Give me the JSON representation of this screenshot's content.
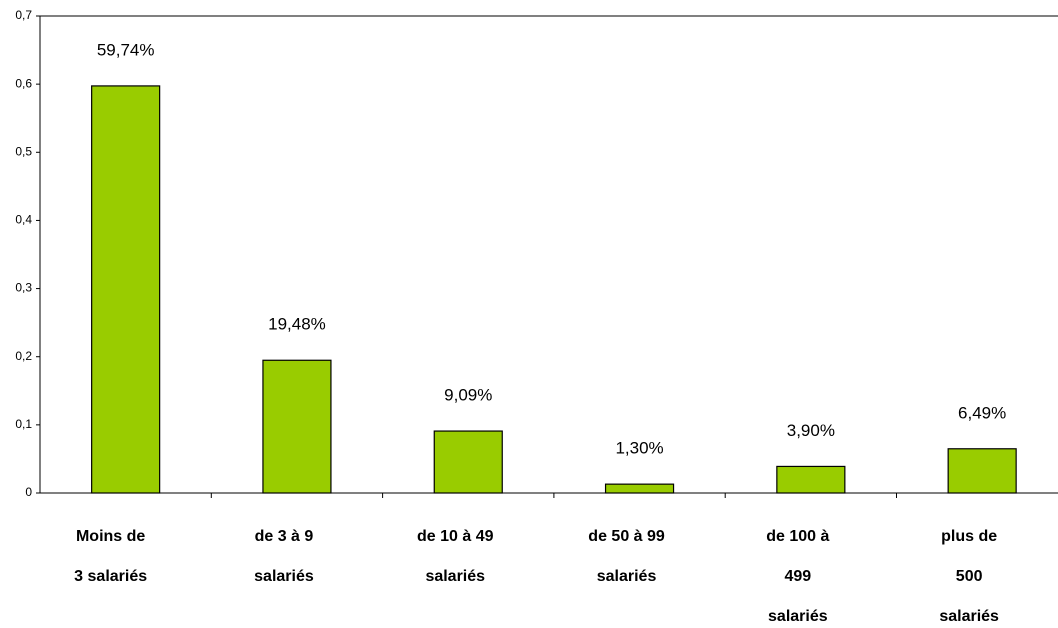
{
  "chart_data": {
    "type": "bar",
    "categories": [
      [
        "Moins de",
        "3 salariés"
      ],
      [
        "de 3 à 9",
        "salariés"
      ],
      [
        "de 10 à 49",
        "salariés"
      ],
      [
        "de 50 à 99",
        "salariés"
      ],
      [
        "de 100 à",
        "499",
        "salariés"
      ],
      [
        "plus de",
        "500",
        "salariés"
      ]
    ],
    "values": [
      0.5974,
      0.1948,
      0.0909,
      0.013,
      0.039,
      0.0649
    ],
    "value_labels": [
      "59,74%",
      "19,48%",
      "9,09%",
      "1,30%",
      "3,90%",
      "6,49%"
    ],
    "color": "#99cc00",
    "ylim": [
      0,
      0.7
    ],
    "yticks": [
      0,
      {
        "value": 0.1,
        "label": "0,1"
      },
      {
        "value": 0.2,
        "label": "0,2"
      },
      {
        "value": 0.3,
        "label": "0,3"
      },
      {
        "value": 0.4,
        "label": "0,4"
      },
      {
        "value": 0.5,
        "label": "0,5"
      },
      {
        "value": 0.6,
        "label": "0,6"
      },
      {
        "value": 0.7,
        "label": "0,7"
      }
    ],
    "grid": false
  }
}
